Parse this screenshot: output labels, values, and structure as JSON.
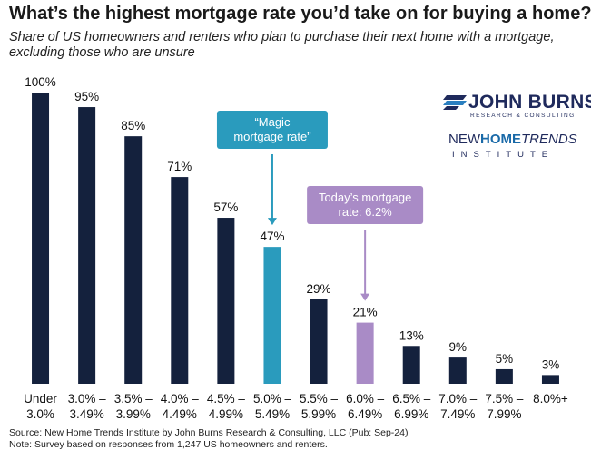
{
  "title": "What’s the highest mortgage rate you’d take on for buying a home?",
  "subtitle": "Share of US homeowners and renters who plan to purchase their next home with a mortgage, excluding those who are unsure",
  "logos": {
    "john_burns_main": "JOHN BURNS",
    "john_burns_sub": "RESEARCH & CONSULTING",
    "nht_new": "NEW",
    "nht_home": "HOME",
    "nht_trends": "TRENDS",
    "nht_institute": "INSTITUTE"
  },
  "annotations": [
    {
      "lines": [
        "“Magic",
        "mortgage rate”"
      ],
      "color": "#2a9bbd",
      "target_index": 5
    },
    {
      "lines": [
        "Today’s mortgage",
        "rate: 6.2%"
      ],
      "color": "#a98bc6",
      "target_index": 7
    }
  ],
  "footer": {
    "source": "Source: New Home Trends Institute by John Burns Research & Consulting, LLC (Pub: Sep-24)",
    "note": "Note: Survey based on responses from 1,247 US homeowners and renters."
  },
  "chart_data": {
    "type": "bar",
    "title": "What’s the highest mortgage rate you’d take on for buying a home?",
    "subtitle": "Share of US homeowners and renters who plan to purchase their next home with a mortgage, excluding those who are unsure",
    "categories": [
      [
        "Under",
        "3.0%"
      ],
      [
        "3.0% –",
        "3.49%"
      ],
      [
        "3.5% –",
        "3.99%"
      ],
      [
        "4.0% –",
        "4.49%"
      ],
      [
        "4.5% –",
        "4.99%"
      ],
      [
        "5.0% –",
        "5.49%"
      ],
      [
        "5.5% –",
        "5.99%"
      ],
      [
        "6.0% –",
        "6.49%"
      ],
      [
        "6.5% –",
        "6.99%"
      ],
      [
        "7.0% –",
        "7.49%"
      ],
      [
        "7.5% –",
        "7.99%"
      ],
      [
        "8.0%+",
        ""
      ]
    ],
    "values": [
      100,
      95,
      85,
      71,
      57,
      47,
      29,
      21,
      13,
      9,
      5,
      3
    ],
    "value_labels": [
      "100%",
      "95%",
      "85%",
      "71%",
      "57%",
      "47%",
      "29%",
      "21%",
      "13%",
      "9%",
      "5%",
      "3%"
    ],
    "bar_colors": [
      "#14213d",
      "#14213d",
      "#14213d",
      "#14213d",
      "#14213d",
      "#2a9bbd",
      "#14213d",
      "#a98bc6",
      "#14213d",
      "#14213d",
      "#14213d",
      "#14213d"
    ],
    "ylim": [
      0,
      100
    ],
    "xlabel": "",
    "ylabel": "",
    "grid": false,
    "legend": "none"
  }
}
